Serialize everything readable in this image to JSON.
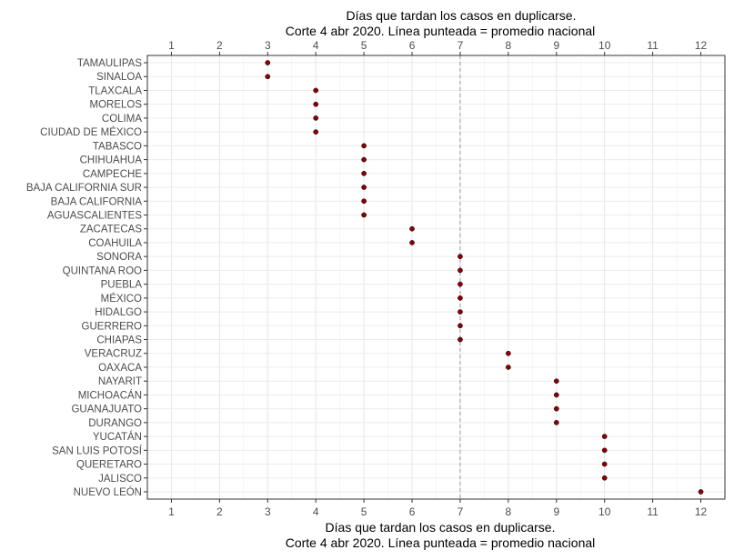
{
  "chart_data": {
    "type": "scatter",
    "title_lines": [
      "Días que tardan los casos en duplicarse.",
      "Corte 4 abr 2020. Línea punteada = promedio nacional"
    ],
    "xlabel_lines": [
      "Días que tardan los casos en duplicarse.",
      "Corte 4 abr 2020. Línea punteada = promedio nacional"
    ],
    "ylabel": "",
    "xlim": [
      0.5,
      12.5
    ],
    "xticks": [
      1,
      2,
      3,
      4,
      5,
      6,
      7,
      8,
      9,
      10,
      11,
      12
    ],
    "reference_line": {
      "value": 7,
      "style": "dashed"
    },
    "grid": true,
    "point_color": "#8b0000",
    "categories": [
      "TAMAULIPAS",
      "SINALOA",
      "TLAXCALA",
      "MORELOS",
      "COLIMA",
      "CIUDAD DE MÉXICO",
      "TABASCO",
      "CHIHUAHUA",
      "CAMPECHE",
      "BAJA CALIFORNIA SUR",
      "BAJA CALIFORNIA",
      "AGUASCALIENTES",
      "ZACATECAS",
      "COAHUILA",
      "SONORA",
      "QUINTANA ROO",
      "PUEBLA",
      "MÉXICO",
      "HIDALGO",
      "GUERRERO",
      "CHIAPAS",
      "VERACRUZ",
      "OAXACA",
      "NAYARIT",
      "MICHOACÁN",
      "GUANAJUATO",
      "DURANGO",
      "YUCATÁN",
      "SAN LUIS POTOSÍ",
      "QUERETARO",
      "JALISCO",
      "NUEVO LEÓN"
    ],
    "values": [
      3,
      3,
      4,
      4,
      4,
      4,
      5,
      5,
      5,
      5,
      5,
      5,
      6,
      6,
      7,
      7,
      7,
      7,
      7,
      7,
      7,
      8,
      8,
      9,
      9,
      9,
      9,
      10,
      10,
      10,
      10,
      12
    ]
  }
}
